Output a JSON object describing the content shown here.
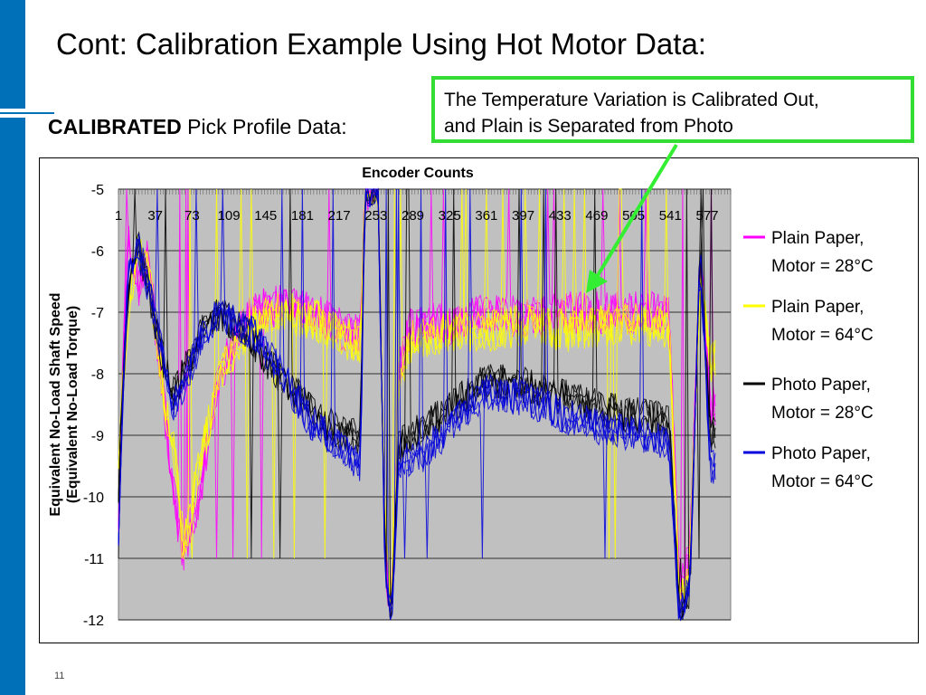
{
  "slide": {
    "title": "Cont: Calibration Example Using Hot Motor Data:",
    "subtitle_bold": "CALIBRATED",
    "subtitle_rest": " Pick Profile Data:",
    "callout_line1": "The Temperature Variation is Calibrated Out,",
    "callout_line2": "and Plain is Separated from Photo",
    "page_number": "11"
  },
  "colors": {
    "accent_bar": "#0070b8",
    "callout_border": "#33dd33",
    "arrow": "#33ee33",
    "plot_bg": "#c0c0c0"
  },
  "chart_data": {
    "type": "line",
    "title": "Encoder Counts",
    "ylabel_line1": "Equivalent No-Load Shaft Speed",
    "ylabel_line2": "(Equivalent No-Load Torque)",
    "x_axis_position": "top",
    "x_ticks": [
      "1",
      "37",
      "73",
      "109",
      "145",
      "181",
      "217",
      "253",
      "289",
      "325",
      "361",
      "397",
      "433",
      "469",
      "505",
      "541",
      "577"
    ],
    "xlim": [
      1,
      600
    ],
    "ylim": [
      -12,
      -5
    ],
    "y_ticks": [
      -5,
      -6,
      -7,
      -8,
      -9,
      -10,
      -11,
      -12
    ],
    "grid": "horizontal",
    "legend_position": "right",
    "series": [
      {
        "name_line1": "Plain Paper,",
        "name_line2": "Motor = 28°C",
        "color": "#ff00ff",
        "x": [
          1,
          10,
          20,
          30,
          45,
          55,
          65,
          80,
          100,
          130,
          160,
          190,
          220,
          238,
          242,
          255,
          262,
          268,
          275,
          285,
          300,
          330,
          360,
          400,
          440,
          480,
          520,
          540,
          550,
          560,
          570,
          580
        ],
        "values": [
          -10.2,
          -5.6,
          -6.6,
          -6.1,
          -8.4,
          -10.0,
          -11.0,
          -10.0,
          -8.0,
          -7.0,
          -6.9,
          -7.0,
          -7.3,
          -7.4,
          -5.0,
          -5.0,
          -11.0,
          -12.0,
          -8.0,
          -7.3,
          -7.2,
          -7.2,
          -7.0,
          -7.1,
          -7.0,
          -7.0,
          -7.0,
          -7.1,
          -11.5,
          -11.0,
          -6.0,
          -8.5
        ],
        "noise": 0.35
      },
      {
        "name_line1": "Plain Paper,",
        "name_line2": "Motor = 64°C",
        "color": "#ffff00",
        "x": [
          1,
          10,
          20,
          30,
          45,
          55,
          65,
          80,
          100,
          130,
          160,
          190,
          220,
          238,
          242,
          255,
          262,
          268,
          275,
          285,
          300,
          330,
          360,
          400,
          440,
          480,
          520,
          540,
          550,
          560,
          570,
          580
        ],
        "values": [
          -9.2,
          -7.0,
          -5.9,
          -6.3,
          -8.3,
          -9.2,
          -10.8,
          -9.5,
          -8.0,
          -7.2,
          -7.0,
          -7.1,
          -7.4,
          -7.5,
          -5.0,
          -5.0,
          -10.5,
          -12.0,
          -8.2,
          -7.5,
          -7.4,
          -7.3,
          -7.3,
          -7.2,
          -7.3,
          -7.2,
          -7.2,
          -7.3,
          -11.8,
          -11.0,
          -6.5,
          -7.8
        ],
        "noise": 0.35
      },
      {
        "name_line1": "Photo Paper,",
        "name_line2": "Motor = 28°C",
        "color": "#000000",
        "x": [
          1,
          10,
          20,
          30,
          45,
          55,
          65,
          80,
          100,
          130,
          160,
          190,
          220,
          238,
          242,
          255,
          262,
          268,
          275,
          285,
          300,
          330,
          360,
          400,
          440,
          480,
          520,
          540,
          550,
          560,
          570,
          580
        ],
        "values": [
          -9.8,
          -6.6,
          -5.9,
          -6.6,
          -7.8,
          -8.3,
          -8.0,
          -7.4,
          -7.0,
          -7.4,
          -8.1,
          -8.6,
          -9.0,
          -9.0,
          -5.0,
          -5.0,
          -11.0,
          -12.0,
          -9.2,
          -9.0,
          -8.9,
          -8.5,
          -8.1,
          -8.2,
          -8.4,
          -8.6,
          -8.7,
          -8.8,
          -12.0,
          -11.5,
          -6.0,
          -9.0
        ],
        "noise": 0.3
      },
      {
        "name_line1": "Photo Paper,",
        "name_line2": "Motor = 64°C",
        "color": "#0000dd",
        "x": [
          1,
          10,
          20,
          30,
          45,
          55,
          65,
          80,
          100,
          130,
          160,
          190,
          220,
          238,
          242,
          255,
          262,
          268,
          275,
          285,
          300,
          330,
          360,
          400,
          440,
          480,
          520,
          540,
          550,
          560,
          570,
          580
        ],
        "values": [
          -10.5,
          -6.4,
          -5.9,
          -6.6,
          -7.8,
          -8.5,
          -8.2,
          -7.5,
          -7.0,
          -7.3,
          -8.0,
          -8.8,
          -9.2,
          -9.5,
          -5.0,
          -5.0,
          -11.5,
          -12.0,
          -9.5,
          -9.4,
          -9.3,
          -8.8,
          -8.3,
          -8.4,
          -8.7,
          -8.9,
          -9.0,
          -9.2,
          -12.0,
          -11.5,
          -6.0,
          -9.5
        ],
        "noise": 0.3
      }
    ]
  }
}
